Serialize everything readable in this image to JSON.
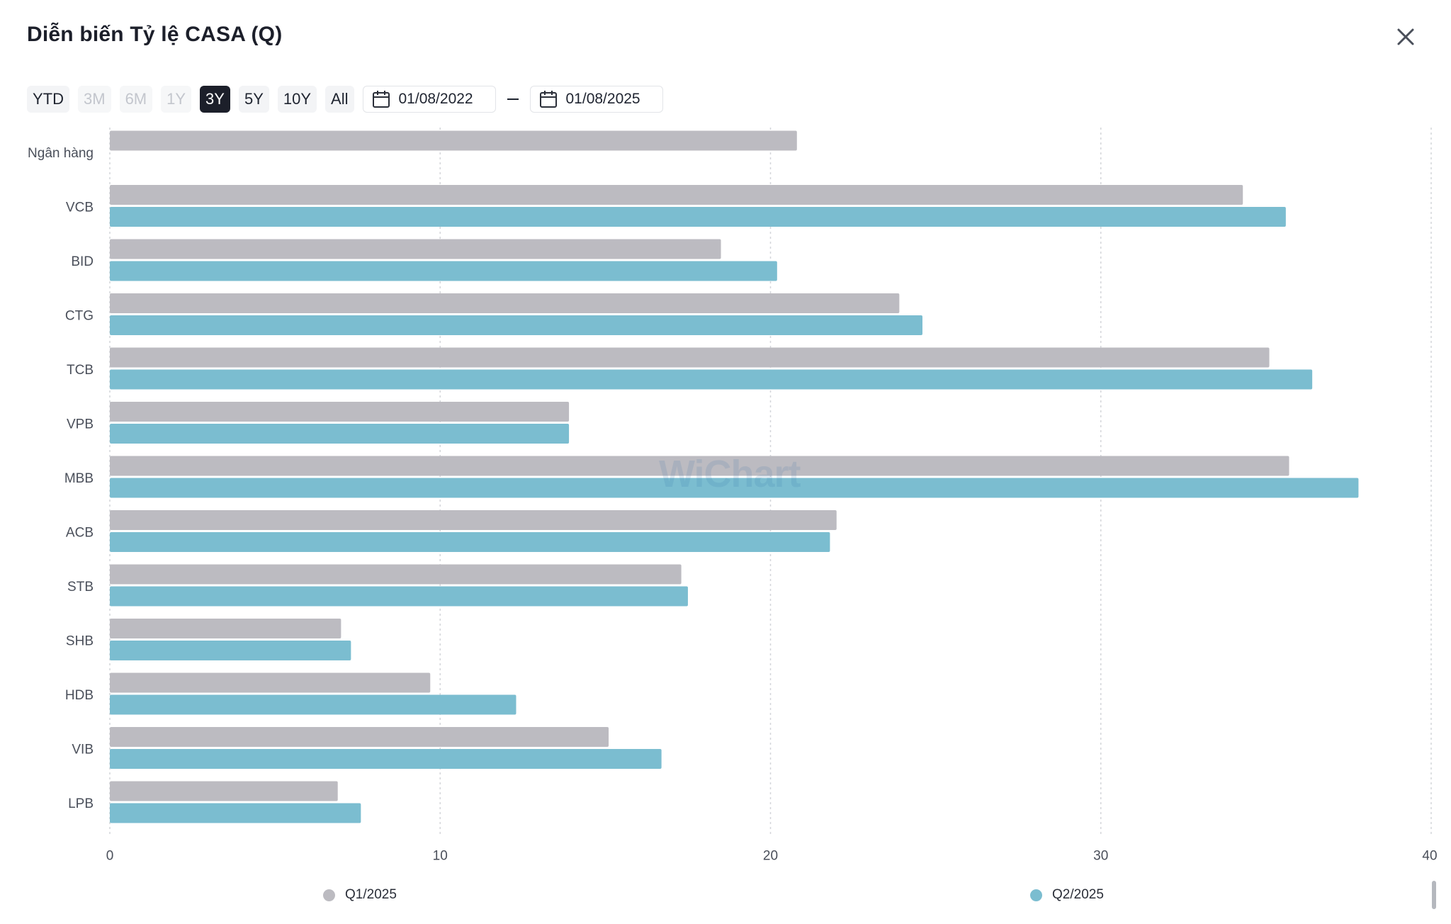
{
  "header": {
    "title": "Diễn biến Tỷ lệ CASA (Q)"
  },
  "toolbar": {
    "ranges": [
      {
        "label": "YTD",
        "state": "enabled"
      },
      {
        "label": "3M",
        "state": "disabled"
      },
      {
        "label": "6M",
        "state": "disabled"
      },
      {
        "label": "1Y",
        "state": "disabled"
      },
      {
        "label": "3Y",
        "state": "active"
      },
      {
        "label": "5Y",
        "state": "enabled"
      },
      {
        "label": "10Y",
        "state": "enabled"
      },
      {
        "label": "All",
        "state": "enabled"
      }
    ],
    "start_date": "01/08/2022",
    "end_date": "01/08/2025"
  },
  "watermark": "WiChart",
  "colors": {
    "q1": "#bcbbc1",
    "q2": "#7bbdd0",
    "grid": "#d4d6da"
  },
  "chart_data": {
    "type": "bar",
    "orientation": "horizontal",
    "categories": [
      "Ngân hàng",
      "VCB",
      "BID",
      "CTG",
      "TCB",
      "VPB",
      "MBB",
      "ACB",
      "STB",
      "SHB",
      "HDB",
      "VIB",
      "LPB"
    ],
    "series": [
      {
        "name": "Q1/2025",
        "color": "#bcbbc1",
        "values": [
          20.8,
          34.3,
          18.5,
          23.9,
          35.1,
          13.9,
          35.7,
          22.0,
          17.3,
          7.0,
          9.7,
          15.1,
          6.9
        ]
      },
      {
        "name": "Q2/2025",
        "color": "#7bbdd0",
        "values": [
          null,
          35.6,
          20.2,
          24.6,
          36.4,
          13.9,
          37.8,
          21.8,
          17.5,
          7.3,
          12.3,
          16.7,
          7.6
        ]
      }
    ],
    "xlim": [
      0,
      40
    ],
    "xticks": [
      0,
      10,
      20,
      30,
      40
    ],
    "grid": true,
    "legend_position": "bottom"
  }
}
